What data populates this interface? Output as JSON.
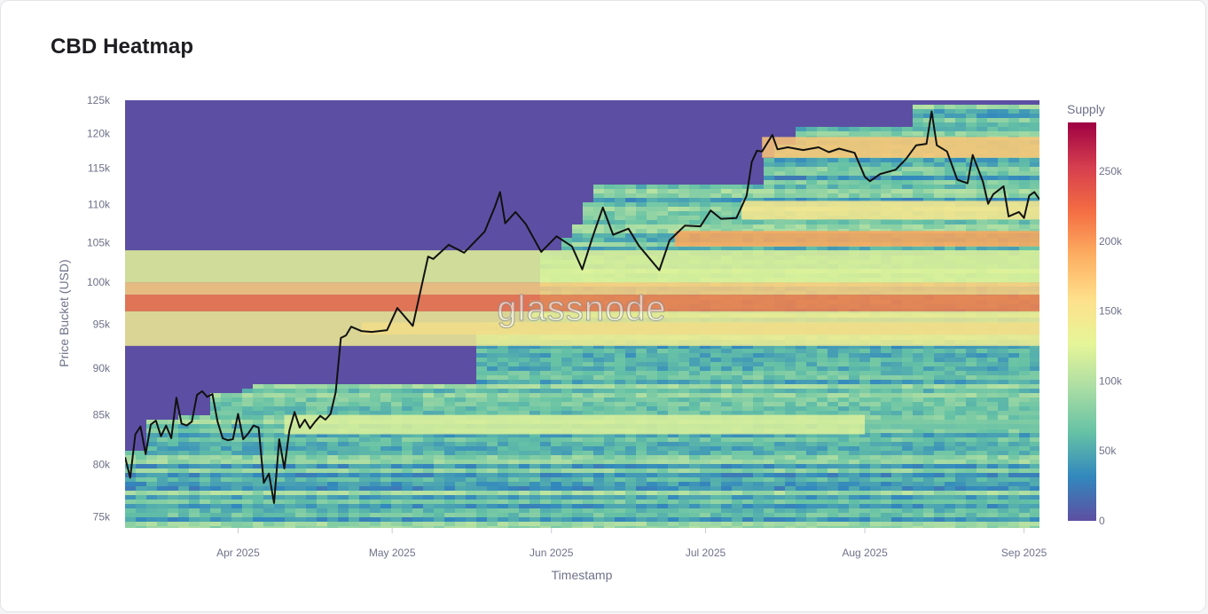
{
  "title": "CBD Heatmap",
  "watermark": "glassnode",
  "colors": {
    "background_fill": "#5c4fa3",
    "price_line": "#111111",
    "colorscale": [
      "#5e4fa2",
      "#3288bd",
      "#66c2a5",
      "#abdda4",
      "#e6f598",
      "#fee08b",
      "#fdae61",
      "#f46d43",
      "#d53e4f",
      "#9e0142"
    ]
  },
  "chart_data": {
    "type": "heatmap",
    "title": "CBD Heatmap",
    "xlabel": "Timestamp",
    "ylabel": "Price Bucket (USD)",
    "x_range": [
      "2025-03-10",
      "2025-09-04"
    ],
    "y_range": [
      74000,
      125000
    ],
    "y_scale": "log",
    "x_ticks": [
      {
        "date": "2025-04-01",
        "label": "Apr 2025"
      },
      {
        "date": "2025-05-01",
        "label": "May 2025"
      },
      {
        "date": "2025-06-01",
        "label": "Jun 2025"
      },
      {
        "date": "2025-07-01",
        "label": "Jul 2025"
      },
      {
        "date": "2025-08-01",
        "label": "Aug 2025"
      },
      {
        "date": "2025-09-01",
        "label": "Sep 2025"
      }
    ],
    "y_ticks": [
      {
        "value": 75000,
        "label": "75k"
      },
      {
        "value": 80000,
        "label": "80k"
      },
      {
        "value": 85000,
        "label": "85k"
      },
      {
        "value": 90000,
        "label": "90k"
      },
      {
        "value": 95000,
        "label": "95k"
      },
      {
        "value": 100000,
        "label": "100k"
      },
      {
        "value": 105000,
        "label": "105k"
      },
      {
        "value": 110000,
        "label": "110k"
      },
      {
        "value": 115000,
        "label": "115k"
      },
      {
        "value": 120000,
        "label": "120k"
      },
      {
        "value": 125000,
        "label": "125k"
      }
    ],
    "colorbar": {
      "title": "Supply",
      "range": [
        0,
        285000
      ],
      "ticks": [
        {
          "value": 0,
          "label": "0"
        },
        {
          "value": 50000,
          "label": "50k"
        },
        {
          "value": 100000,
          "label": "100k"
        },
        {
          "value": 150000,
          "label": "150k"
        },
        {
          "value": 200000,
          "label": "200k"
        },
        {
          "value": 250000,
          "label": "250k"
        }
      ]
    },
    "supply_bands": [
      {
        "low": 96500,
        "high": 98500,
        "supply": 215000,
        "from": "2025-03-10",
        "to": "2025-09-04"
      },
      {
        "low": 98500,
        "high": 100000,
        "supply": 170000,
        "from": "2025-03-10",
        "to": "2025-09-04"
      },
      {
        "low": 93800,
        "high": 95200,
        "supply": 210000,
        "from": "2025-04-25",
        "to": "2025-09-04"
      },
      {
        "low": 92500,
        "high": 96500,
        "supply": 140000,
        "from": "2025-03-10",
        "to": "2025-09-04"
      },
      {
        "low": 100000,
        "high": 104000,
        "supply": 125000,
        "from": "2025-03-10",
        "to": "2025-09-04"
      },
      {
        "low": 104500,
        "high": 106500,
        "supply": 195000,
        "from": "2025-06-25",
        "to": "2025-09-04"
      },
      {
        "low": 108000,
        "high": 110500,
        "supply": 150000,
        "from": "2025-07-08",
        "to": "2025-09-04"
      },
      {
        "low": 116500,
        "high": 119500,
        "supply": 175000,
        "from": "2025-07-12",
        "to": "2025-09-04"
      },
      {
        "low": 83000,
        "high": 85000,
        "supply": 120000,
        "from": "2025-04-10",
        "to": "2025-08-01"
      },
      {
        "low": 83500,
        "high": 84500,
        "supply": 70000,
        "from": "2025-08-01",
        "to": "2025-09-04"
      }
    ],
    "series": [
      {
        "x": [
          "2025-03-10",
          "2025-03-11",
          "2025-03-12",
          "2025-03-13",
          "2025-03-14",
          "2025-03-15",
          "2025-03-16",
          "2025-03-17",
          "2025-03-18",
          "2025-03-19",
          "2025-03-20",
          "2025-03-21",
          "2025-03-22",
          "2025-03-23",
          "2025-03-24",
          "2025-03-25",
          "2025-03-26",
          "2025-03-27",
          "2025-03-28",
          "2025-03-29",
          "2025-03-30",
          "2025-03-31",
          "2025-04-01",
          "2025-04-02",
          "2025-04-03",
          "2025-04-04",
          "2025-04-05",
          "2025-04-06",
          "2025-04-07",
          "2025-04-08",
          "2025-04-09",
          "2025-04-10",
          "2025-04-11",
          "2025-04-12",
          "2025-04-13",
          "2025-04-14",
          "2025-04-15",
          "2025-04-16",
          "2025-04-17",
          "2025-04-18",
          "2025-04-19",
          "2025-04-20",
          "2025-04-21",
          "2025-04-22",
          "2025-04-23",
          "2025-04-25",
          "2025-04-27",
          "2025-04-30",
          "2025-05-02",
          "2025-05-05",
          "2025-05-08",
          "2025-05-09",
          "2025-05-12",
          "2025-05-15",
          "2025-05-19",
          "2025-05-21",
          "2025-05-22",
          "2025-05-23",
          "2025-05-25",
          "2025-05-27",
          "2025-05-30",
          "2025-06-02",
          "2025-06-05",
          "2025-06-07",
          "2025-06-09",
          "2025-06-11",
          "2025-06-13",
          "2025-06-16",
          "2025-06-18",
          "2025-06-22",
          "2025-06-24",
          "2025-06-27",
          "2025-06-30",
          "2025-07-02",
          "2025-07-04",
          "2025-07-07",
          "2025-07-09",
          "2025-07-10",
          "2025-07-11",
          "2025-07-12",
          "2025-07-14",
          "2025-07-15",
          "2025-07-17",
          "2025-07-20",
          "2025-07-23",
          "2025-07-25",
          "2025-07-27",
          "2025-07-30",
          "2025-08-01",
          "2025-08-02",
          "2025-08-04",
          "2025-08-07",
          "2025-08-09",
          "2025-08-11",
          "2025-08-13",
          "2025-08-14",
          "2025-08-15",
          "2025-08-17",
          "2025-08-19",
          "2025-08-21",
          "2025-08-22",
          "2025-08-24",
          "2025-08-25",
          "2025-08-26",
          "2025-08-28",
          "2025-08-29",
          "2025-08-31",
          "2025-09-01",
          "2025-09-02",
          "2025-09-03",
          "2025-09-04"
        ],
        "y": [
          80700,
          78700,
          83000,
          83800,
          81000,
          84000,
          84400,
          82800,
          83900,
          82600,
          86800,
          84100,
          83900,
          84300,
          87100,
          87500,
          86900,
          87200,
          84300,
          82600,
          82400,
          82500,
          85100,
          82500,
          83100,
          83900,
          83700,
          78200,
          79100,
          76300,
          82500,
          79600,
          83400,
          85300,
          83700,
          84500,
          83600,
          84300,
          84900,
          84500,
          85100,
          87400,
          93400,
          93700,
          94700,
          94200,
          94100,
          94300,
          96900,
          94800,
          103200,
          102900,
          104700,
          103700,
          106400,
          109700,
          111700,
          107500,
          109000,
          107400,
          103800,
          105800,
          104500,
          101600,
          105700,
          109600,
          106000,
          106800,
          104600,
          101500,
          105300,
          107200,
          107100,
          109200,
          108100,
          108200,
          111200,
          115900,
          117500,
          117400,
          119800,
          117700,
          118000,
          117600,
          118000,
          117300,
          117800,
          117200,
          113800,
          113200,
          114200,
          114800,
          116300,
          118300,
          118500,
          123300,
          118300,
          117400,
          113400,
          112900,
          116900,
          113100,
          110100,
          111400,
          112500,
          108400,
          109000,
          108200,
          111200,
          111700,
          110700
        ]
      }
    ]
  }
}
